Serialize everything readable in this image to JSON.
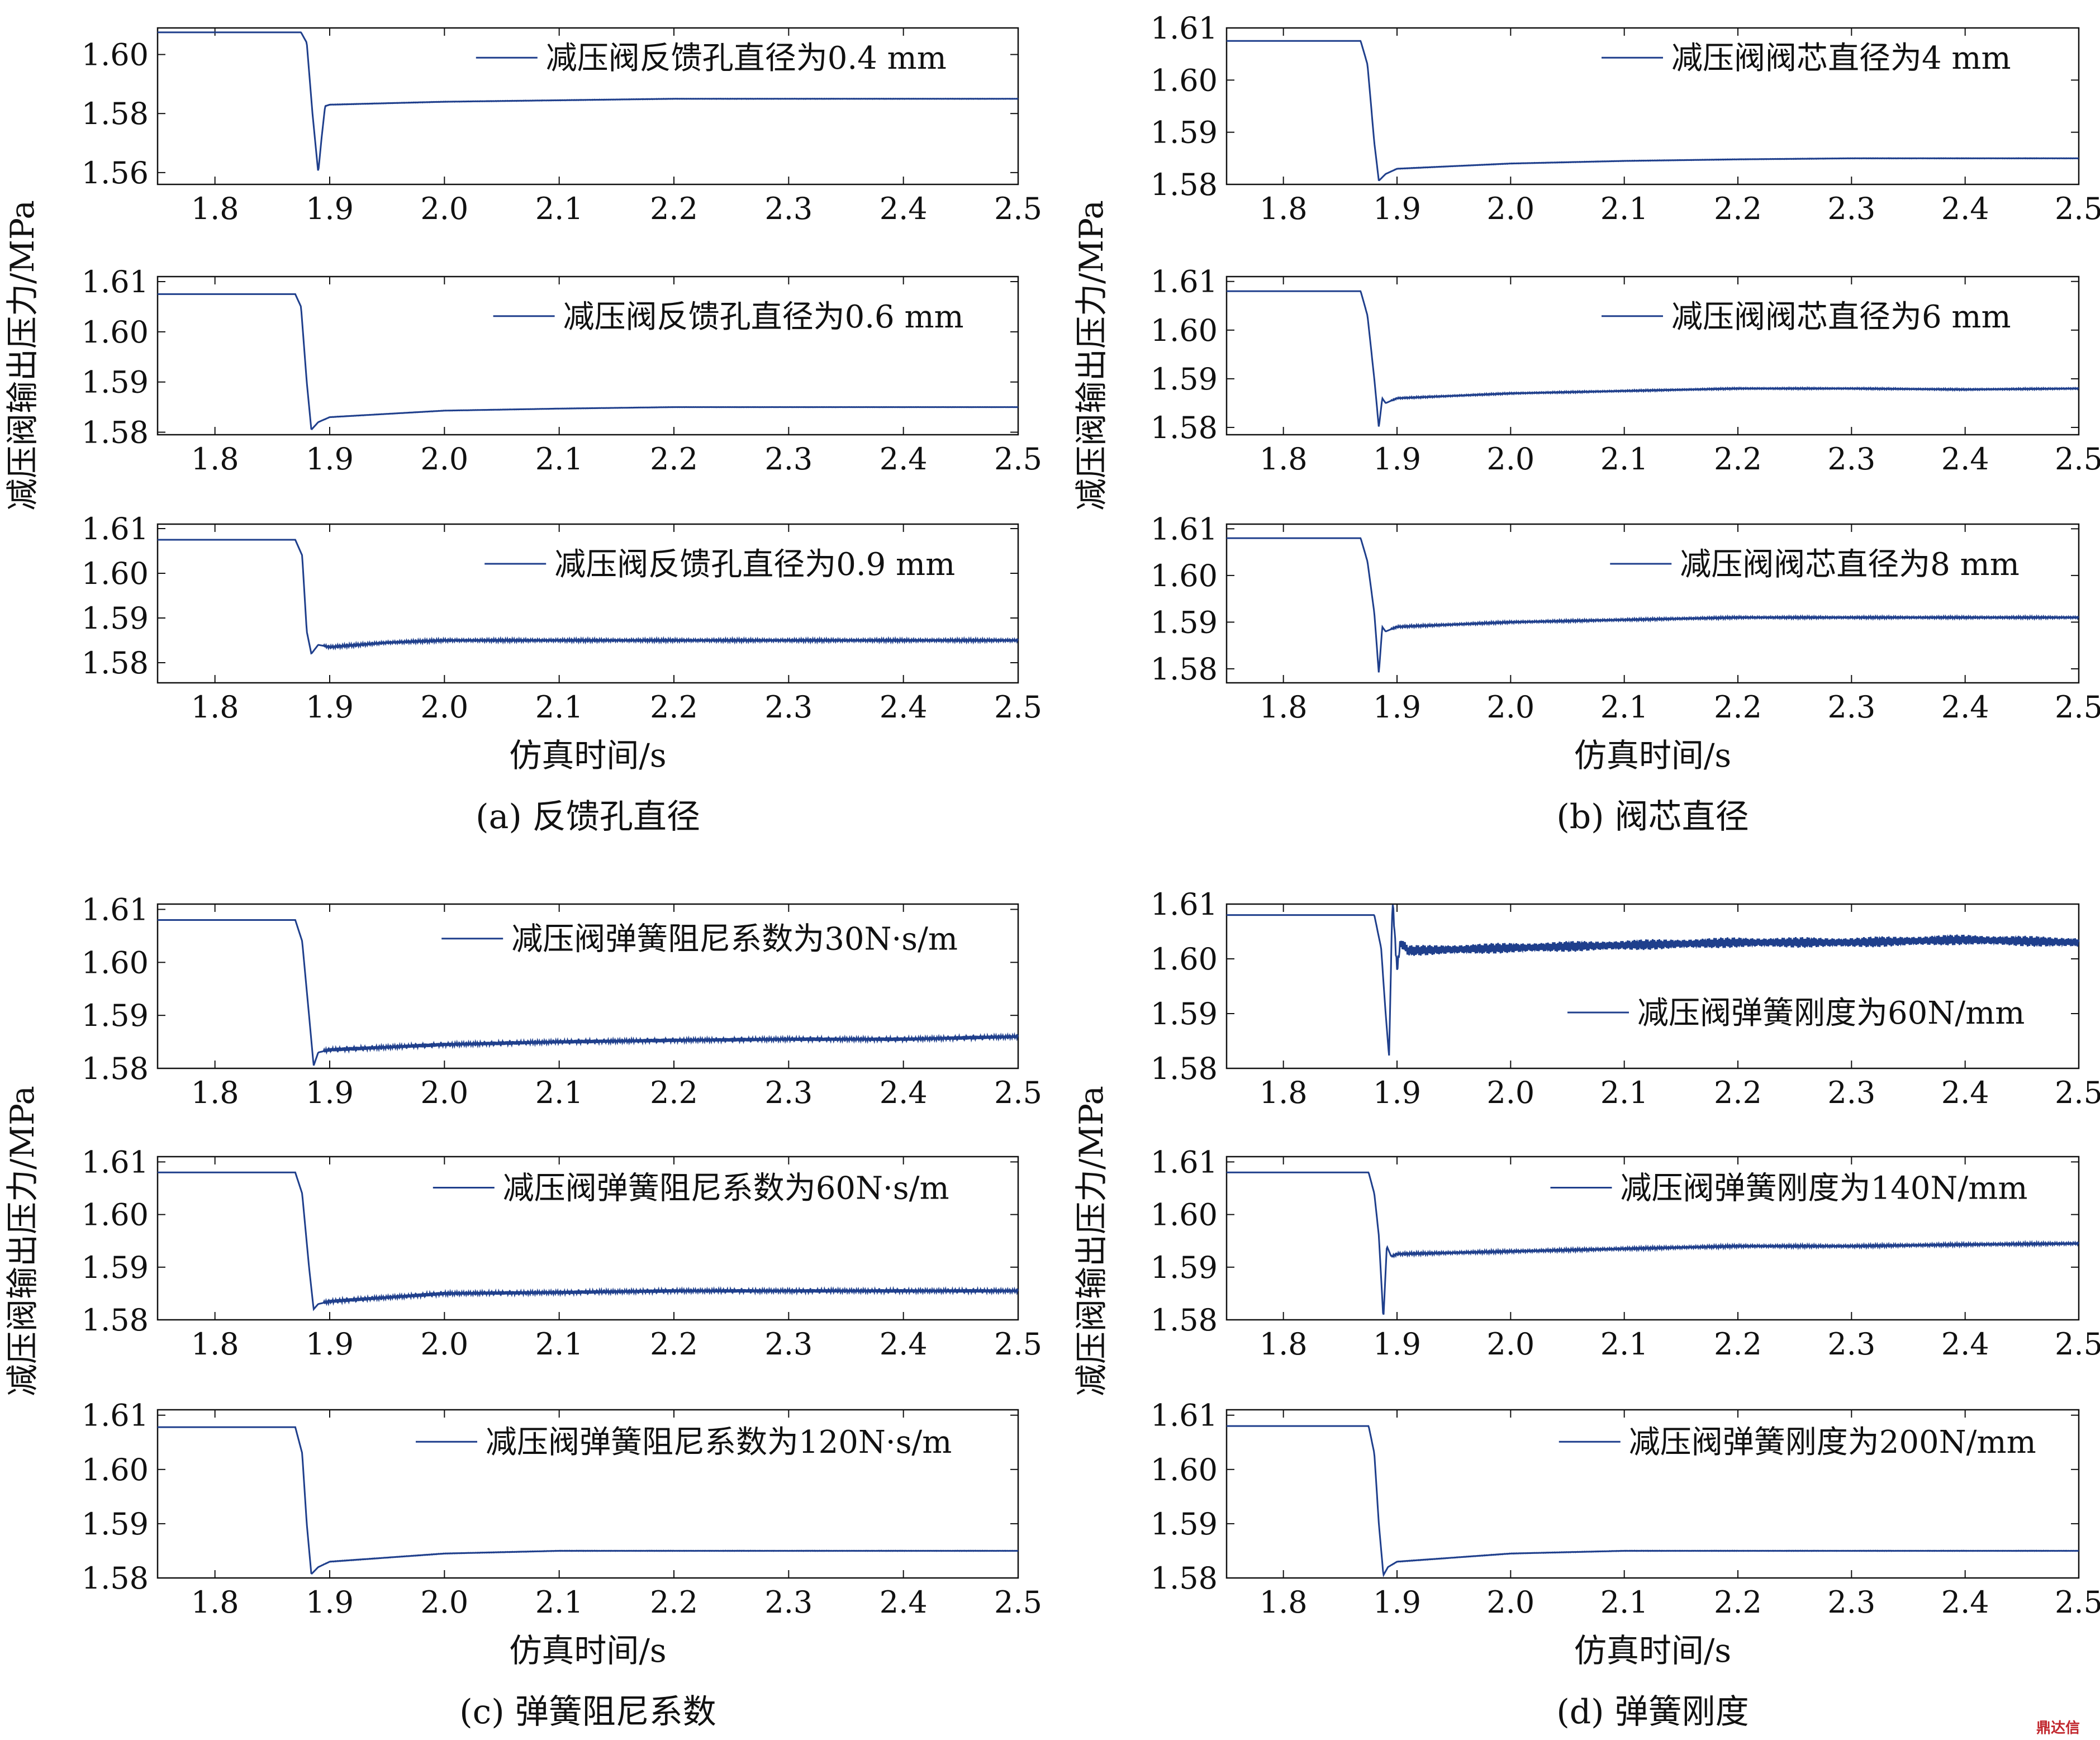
{
  "panels": [
    {
      "caption": "(a) 反馈孔直径",
      "xlabel": "仿真时间/s",
      "ylabel": "减压阀输出压力/MPa",
      "subplots": [
        {
          "legend": "减压阀反馈孔直径为0.4 mm",
          "yticks": [
            "1.56",
            "1.58",
            "1.60"
          ],
          "ylim": [
            1.556,
            1.609
          ]
        },
        {
          "legend": "减压阀反馈孔直径为0.6 mm",
          "yticks": [
            "1.58",
            "1.59",
            "1.60",
            "1.61"
          ],
          "ylim": [
            1.5795,
            1.611
          ]
        },
        {
          "legend": "减压阀反馈孔直径为0.9 mm",
          "yticks": [
            "1.58",
            "1.59",
            "1.60",
            "1.61"
          ],
          "ylim": [
            1.5755,
            1.611
          ]
        }
      ]
    },
    {
      "caption": "(b) 阀芯直径",
      "xlabel": "仿真时间/s",
      "ylabel": "减压阀输出压力/MPa",
      "subplots": [
        {
          "legend": "减压阀阀芯直径为4 mm",
          "yticks": [
            "1.58",
            "1.59",
            "1.60",
            "1.61"
          ],
          "ylim": [
            1.58,
            1.61
          ]
        },
        {
          "legend": "减压阀阀芯直径为6 mm",
          "yticks": [
            "1.58",
            "1.59",
            "1.60",
            "1.61"
          ],
          "ylim": [
            1.5785,
            1.611
          ]
        },
        {
          "legend": "减压阀阀芯直径为8 mm",
          "yticks": [
            "1.58",
            "1.59",
            "1.60",
            "1.61"
          ],
          "ylim": [
            1.577,
            1.611
          ]
        }
      ]
    },
    {
      "caption": "(c) 弹簧阻尼系数",
      "xlabel": "仿真时间/s",
      "ylabel": "减压阀输出压力/MPa",
      "subplots": [
        {
          "legend": "减压阀弹簧阻尼系数为30N·s/m",
          "yticks": [
            "1.58",
            "1.59",
            "1.60",
            "1.61"
          ],
          "ylim": [
            1.58,
            1.611
          ]
        },
        {
          "legend": "减压阀弹簧阻尼系数为60N·s/m",
          "yticks": [
            "1.58",
            "1.59",
            "1.60",
            "1.61"
          ],
          "ylim": [
            1.58,
            1.611
          ]
        },
        {
          "legend": "减压阀弹簧阻尼系数为120N·s/m",
          "yticks": [
            "1.58",
            "1.59",
            "1.60",
            "1.61"
          ],
          "ylim": [
            1.58,
            1.611
          ]
        }
      ]
    },
    {
      "caption": "(d) 弹簧刚度",
      "xlabel": "仿真时间/s",
      "ylabel": "减压阀输出压力/MPa",
      "subplots": [
        {
          "legend": "减压阀弹簧刚度为60N/mm",
          "yticks": [
            "1.58",
            "1.59",
            "1.60",
            "1.61"
          ],
          "ylim": [
            1.58,
            1.61
          ]
        },
        {
          "legend": "减压阀弹簧刚度为140N/mm",
          "yticks": [
            "1.58",
            "1.59",
            "1.60",
            "1.61"
          ],
          "ylim": [
            1.58,
            1.611
          ]
        },
        {
          "legend": "减压阀弹簧刚度为200N/mm",
          "yticks": [
            "1.58",
            "1.59",
            "1.60",
            "1.61"
          ],
          "ylim": [
            1.58,
            1.611
          ]
        }
      ]
    }
  ],
  "xticks": [
    "1.8",
    "1.9",
    "2.0",
    "2.1",
    "2.2",
    "2.3",
    "2.4",
    "2.5"
  ],
  "watermark": "鼎达信",
  "colors": {
    "line": "#1f3f8c",
    "axis": "#111111"
  },
  "chart_data": [
    {
      "type": "line",
      "panel": "a",
      "ylabel": "减压阀输出压力/MPa",
      "xlabel": "仿真时间/s",
      "xlim": [
        1.75,
        2.5
      ],
      "ylim": [
        1.556,
        1.609
      ],
      "series": [
        {
          "name": "减压阀反馈孔直径为0.4 mm",
          "x": [
            1.75,
            1.875,
            1.88,
            1.885,
            1.89,
            1.893,
            1.896,
            1.9,
            2.0,
            2.1,
            2.2,
            2.3,
            2.4,
            2.5
          ],
          "y": [
            1.6075,
            1.6075,
            1.604,
            1.58,
            1.56,
            1.572,
            1.5825,
            1.583,
            1.584,
            1.5845,
            1.585,
            1.585,
            1.585,
            1.585
          ]
        }
      ]
    },
    {
      "type": "line",
      "panel": "a",
      "ylabel": "减压阀输出压力/MPa",
      "xlabel": "仿真时间/s",
      "xlim": [
        1.75,
        2.5
      ],
      "ylim": [
        1.5795,
        1.611
      ],
      "series": [
        {
          "name": "减压阀反馈孔直径为0.6 mm",
          "x": [
            1.75,
            1.87,
            1.875,
            1.88,
            1.884,
            1.89,
            1.9,
            2.0,
            2.1,
            2.2,
            2.3,
            2.4,
            2.5
          ],
          "y": [
            1.6075,
            1.6075,
            1.605,
            1.59,
            1.5805,
            1.582,
            1.583,
            1.5843,
            1.5847,
            1.585,
            1.585,
            1.585,
            1.585
          ]
        }
      ]
    },
    {
      "type": "line",
      "panel": "a",
      "ylabel": "减压阀输出压力/MPa",
      "xlabel": "仿真时间/s",
      "xlim": [
        1.75,
        2.5
      ],
      "ylim": [
        1.5755,
        1.611
      ],
      "series": [
        {
          "name": "减压阀反馈孔直径为0.9 mm",
          "x": [
            1.75,
            1.87,
            1.876,
            1.88,
            1.884,
            1.89,
            1.9,
            1.95,
            2.0,
            2.1,
            2.2,
            2.3,
            2.4,
            2.5
          ],
          "y": [
            1.6075,
            1.6075,
            1.604,
            1.587,
            1.582,
            1.584,
            1.5835,
            1.5845,
            1.585,
            1.585,
            1.585,
            1.585,
            1.585,
            1.585
          ]
        }
      ]
    },
    {
      "type": "line",
      "panel": "b",
      "ylabel": "减压阀输出压力/MPa",
      "xlabel": "仿真时间/s",
      "xlim": [
        1.75,
        2.5
      ],
      "ylim": [
        1.58,
        1.61
      ],
      "series": [
        {
          "name": "减压阀阀芯直径为4 mm",
          "x": [
            1.75,
            1.868,
            1.874,
            1.88,
            1.884,
            1.89,
            1.9,
            2.0,
            2.1,
            2.2,
            2.3,
            2.4,
            2.5
          ],
          "y": [
            1.6075,
            1.6075,
            1.603,
            1.588,
            1.5807,
            1.582,
            1.583,
            1.584,
            1.5845,
            1.5848,
            1.585,
            1.585,
            1.585
          ]
        }
      ]
    },
    {
      "type": "line",
      "panel": "b",
      "ylabel": "减压阀输出压力/MPa",
      "xlabel": "仿真时间/s",
      "xlim": [
        1.75,
        2.5
      ],
      "ylim": [
        1.5785,
        1.611
      ],
      "series": [
        {
          "name": "减压阀阀芯直径为6 mm",
          "x": [
            1.75,
            1.868,
            1.874,
            1.88,
            1.884,
            1.887,
            1.89,
            1.9,
            2.0,
            2.1,
            2.2,
            2.3,
            2.4,
            2.5
          ],
          "y": [
            1.608,
            1.608,
            1.603,
            1.59,
            1.58,
            1.586,
            1.585,
            1.586,
            1.587,
            1.5875,
            1.588,
            1.588,
            1.5878,
            1.588
          ]
        }
      ]
    },
    {
      "type": "line",
      "panel": "b",
      "ylabel": "减压阀输出压力/MPa",
      "xlabel": "仿真时间/s",
      "xlim": [
        1.75,
        2.5
      ],
      "ylim": [
        1.577,
        1.611
      ],
      "series": [
        {
          "name": "减压阀阀芯直径为8 mm",
          "x": [
            1.75,
            1.868,
            1.874,
            1.88,
            1.884,
            1.887,
            1.89,
            1.9,
            2.0,
            2.1,
            2.2,
            2.3,
            2.4,
            2.5
          ],
          "y": [
            1.608,
            1.608,
            1.603,
            1.592,
            1.579,
            1.589,
            1.588,
            1.589,
            1.59,
            1.5905,
            1.591,
            1.591,
            1.591,
            1.591
          ]
        }
      ]
    },
    {
      "type": "line",
      "panel": "c",
      "ylabel": "减压阀输出压力/MPa",
      "xlabel": "仿真时间/s",
      "xlim": [
        1.75,
        2.5
      ],
      "ylim": [
        1.58,
        1.611
      ],
      "series": [
        {
          "name": "减压阀弹簧阻尼系数为30N·s/m",
          "x": [
            1.75,
            1.87,
            1.876,
            1.882,
            1.886,
            1.89,
            1.9,
            2.0,
            2.1,
            2.2,
            2.3,
            2.4,
            2.5
          ],
          "y": [
            1.608,
            1.608,
            1.604,
            1.59,
            1.5805,
            1.583,
            1.5835,
            1.5845,
            1.585,
            1.5853,
            1.5855,
            1.5855,
            1.586
          ]
        }
      ]
    },
    {
      "type": "line",
      "panel": "c",
      "ylabel": "减压阀输出压力/MPa",
      "xlabel": "仿真时间/s",
      "xlim": [
        1.75,
        2.5
      ],
      "ylim": [
        1.58,
        1.611
      ],
      "series": [
        {
          "name": "减压阀弹簧阻尼系数为60N·s/m",
          "x": [
            1.75,
            1.87,
            1.876,
            1.882,
            1.886,
            1.89,
            1.9,
            2.0,
            2.1,
            2.2,
            2.3,
            2.4,
            2.5
          ],
          "y": [
            1.608,
            1.608,
            1.604,
            1.59,
            1.582,
            1.583,
            1.5835,
            1.585,
            1.5852,
            1.5855,
            1.5855,
            1.5855,
            1.5855
          ]
        }
      ]
    },
    {
      "type": "line",
      "panel": "c",
      "ylabel": "减压阀输出压力/MPa",
      "xlabel": "仿真时间/s",
      "xlim": [
        1.75,
        2.5
      ],
      "ylim": [
        1.58,
        1.611
      ],
      "series": [
        {
          "name": "减压阀弹簧阻尼系数为120N·s/m",
          "x": [
            1.75,
            1.87,
            1.876,
            1.88,
            1.884,
            1.89,
            1.9,
            2.0,
            2.1,
            2.2,
            2.3,
            2.4,
            2.5
          ],
          "y": [
            1.6078,
            1.6078,
            1.603,
            1.59,
            1.5807,
            1.582,
            1.583,
            1.5845,
            1.585,
            1.585,
            1.585,
            1.585,
            1.585
          ]
        }
      ]
    },
    {
      "type": "line",
      "panel": "d",
      "ylabel": "减压阀输出压力/MPa",
      "xlabel": "仿真时间/s",
      "xlim": [
        1.75,
        2.5
      ],
      "ylim": [
        1.58,
        1.61
      ],
      "series": [
        {
          "name": "减压阀弹簧刚度为60N/mm",
          "x": [
            1.75,
            1.88,
            1.886,
            1.89,
            1.893,
            1.896,
            1.9,
            1.903,
            1.91,
            2.0,
            2.1,
            2.2,
            2.3,
            2.4,
            2.5
          ],
          "y": [
            1.608,
            1.608,
            1.602,
            1.59,
            1.582,
            1.611,
            1.598,
            1.603,
            1.6015,
            1.602,
            1.6025,
            1.603,
            1.603,
            1.6035,
            1.603
          ]
        }
      ]
    },
    {
      "type": "line",
      "panel": "d",
      "ylabel": "减压阀输出压力/MPa",
      "xlabel": "仿真时间/s",
      "xlim": [
        1.75,
        2.5
      ],
      "ylim": [
        1.58,
        1.611
      ],
      "series": [
        {
          "name": "减压阀弹簧刚度为140N/mm",
          "x": [
            1.75,
            1.875,
            1.88,
            1.884,
            1.888,
            1.891,
            1.895,
            1.9,
            2.0,
            2.1,
            2.2,
            2.3,
            2.4,
            2.5
          ],
          "y": [
            1.608,
            1.608,
            1.604,
            1.596,
            1.58,
            1.594,
            1.592,
            1.5925,
            1.593,
            1.5935,
            1.594,
            1.594,
            1.5943,
            1.5945
          ]
        }
      ]
    },
    {
      "type": "line",
      "panel": "d",
      "ylabel": "减压阀输出压力/MPa",
      "xlabel": "仿真时间/s",
      "xlim": [
        1.75,
        2.5
      ],
      "ylim": [
        1.58,
        1.611
      ],
      "series": [
        {
          "name": "减压阀弹簧刚度为200N/mm",
          "x": [
            1.75,
            1.875,
            1.88,
            1.884,
            1.888,
            1.892,
            1.9,
            2.0,
            2.1,
            2.2,
            2.3,
            2.4,
            2.5
          ],
          "y": [
            1.608,
            1.608,
            1.603,
            1.59,
            1.5805,
            1.582,
            1.583,
            1.5845,
            1.585,
            1.585,
            1.585,
            1.585,
            1.585
          ]
        }
      ]
    }
  ]
}
